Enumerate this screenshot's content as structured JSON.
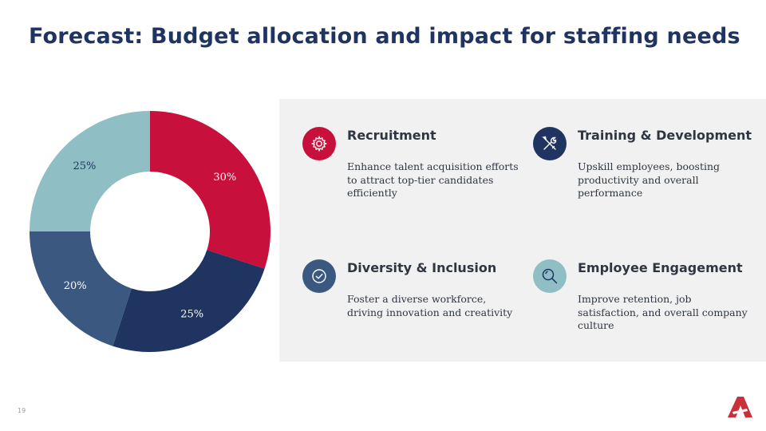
{
  "slide": {
    "title": "Forecast: Budget allocation and impact for staffing needs",
    "page_number": "19"
  },
  "chart_data": {
    "type": "pie",
    "variant": "donut",
    "categories": [
      "Recruitment",
      "Training & Development",
      "Diversity & Inclusion",
      "Employee Engagement"
    ],
    "values": [
      30,
      25,
      20,
      25
    ],
    "labels": [
      "30%",
      "25%",
      "20%",
      "25%"
    ],
    "colors": [
      "#c8103c",
      "#1f3461",
      "#3b5880",
      "#8fbfc4"
    ],
    "label_colors": [
      "#ffffff",
      "#ffffff",
      "#ffffff",
      "#1f3461"
    ]
  },
  "items": [
    {
      "title": "Recruitment",
      "description": "Enhance talent acquisition efforts to attract top-tier candidates efficiently",
      "icon": "gear-icon",
      "color": "#c8103c"
    },
    {
      "title": "Training & Development",
      "description": "Upskill employees, boosting productivity and overall performance",
      "icon": "tools-icon",
      "color": "#1f3461"
    },
    {
      "title": "Diversity & Inclusion",
      "description": "Foster a diverse workforce, driving innovation and creativity",
      "icon": "check-badge-icon",
      "color": "#3b5880"
    },
    {
      "title": "Employee Engagement",
      "description": "Improve retention, job satisfaction, and overall company culture",
      "icon": "magnifier-icon",
      "color": "#8fbfc4"
    }
  ],
  "logo": {
    "icon": "company-logo-icon",
    "color": "#c8303a"
  }
}
